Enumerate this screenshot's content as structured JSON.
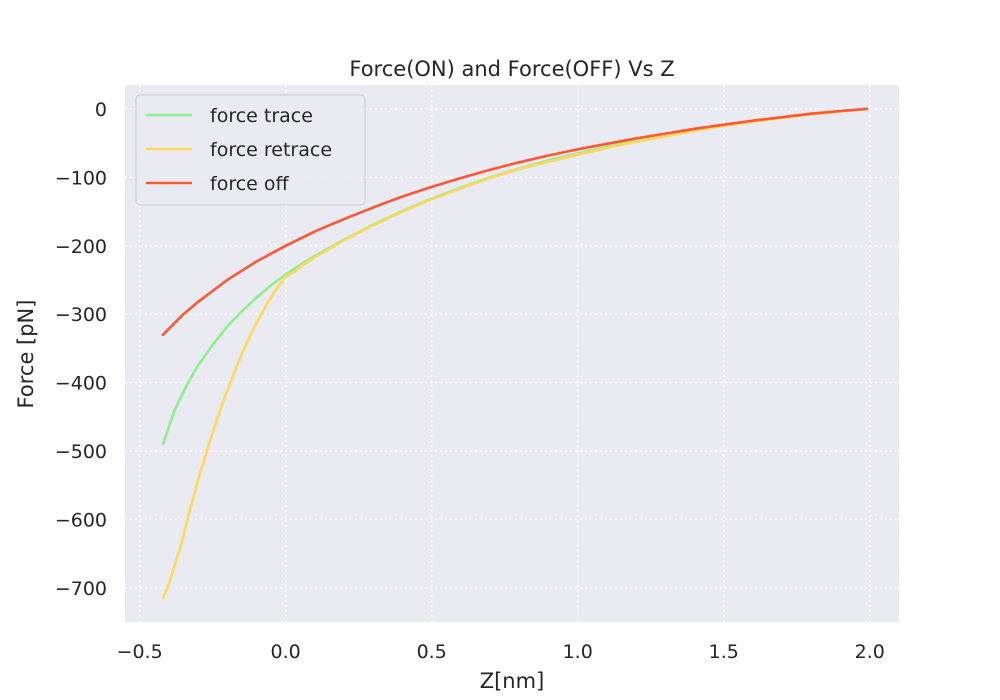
{
  "chart_data": {
    "type": "line",
    "title": "Force(ON) and Force(OFF) Vs Z",
    "xlabel": "Z[nm]",
    "ylabel": "Force [pN]",
    "xlim": [
      -0.55,
      2.1
    ],
    "ylim": [
      -750,
      35
    ],
    "xticks": [
      -0.5,
      0.0,
      0.5,
      1.0,
      1.5,
      2.0
    ],
    "xtick_labels": [
      "−0.5",
      "0.0",
      "0.5",
      "1.0",
      "1.5",
      "2.0"
    ],
    "yticks": [
      0,
      -100,
      -200,
      -300,
      -400,
      -500,
      -600,
      -700
    ],
    "ytick_labels": [
      "0",
      "−100",
      "−200",
      "−300",
      "−400",
      "−500",
      "−600",
      "−700"
    ],
    "grid": true,
    "grid_style": "dotted",
    "background": "#eaeaf2",
    "legend": "upper-left",
    "series": [
      {
        "name": "force trace",
        "color": "#90ee90",
        "x": [
          -0.42,
          -0.38,
          -0.34,
          -0.3,
          -0.25,
          -0.2,
          -0.15,
          -0.1,
          -0.05,
          0.0,
          0.05,
          0.1,
          0.2,
          0.3,
          0.4,
          0.5,
          0.6,
          0.7,
          0.8,
          0.9,
          1.0,
          1.1,
          1.2,
          1.3,
          1.4,
          1.5,
          1.6,
          1.7,
          1.8,
          1.9,
          1.99
        ],
        "y": [
          -490,
          -440,
          -405,
          -375,
          -345,
          -318,
          -296,
          -276,
          -258,
          -242,
          -228,
          -215,
          -191,
          -169,
          -149,
          -131,
          -115,
          -100,
          -87,
          -75,
          -65,
          -55,
          -46,
          -38,
          -30,
          -24,
          -18,
          -12,
          -7,
          -3,
          0
        ]
      },
      {
        "name": "force retrace",
        "color": "#ffd75a",
        "x": [
          -0.42,
          -0.4,
          -0.36,
          -0.33,
          -0.3,
          -0.27,
          -0.24,
          -0.21,
          -0.18,
          -0.15,
          -0.12,
          -0.09,
          -0.06,
          -0.03,
          0.0,
          0.03,
          0.06,
          0.1,
          0.2,
          0.3,
          0.4,
          0.5,
          0.6,
          0.7,
          0.8,
          0.9,
          1.0,
          1.1,
          1.2,
          1.3,
          1.4,
          1.5,
          1.6,
          1.7,
          1.8,
          1.9,
          1.99
        ],
        "y": [
          -715,
          -695,
          -640,
          -590,
          -543,
          -500,
          -460,
          -423,
          -390,
          -358,
          -330,
          -305,
          -282,
          -262,
          -245,
          -238,
          -228,
          -217,
          -192,
          -170,
          -150,
          -132,
          -116,
          -101,
          -88,
          -77,
          -67,
          -57,
          -48,
          -40,
          -32,
          -25,
          -19,
          -13,
          -8,
          -4,
          0
        ]
      },
      {
        "name": "force off",
        "color": "#ff5733",
        "x": [
          -0.42,
          -0.35,
          -0.3,
          -0.2,
          -0.1,
          0.0,
          0.1,
          0.2,
          0.3,
          0.4,
          0.5,
          0.6,
          0.7,
          0.8,
          0.9,
          1.0,
          1.1,
          1.2,
          1.3,
          1.4,
          1.5,
          1.6,
          1.7,
          1.8,
          1.9,
          1.99
        ],
        "y": [
          -330,
          -300,
          -282,
          -250,
          -223,
          -200,
          -179,
          -161,
          -144,
          -128,
          -114,
          -101,
          -89,
          -78,
          -68,
          -59,
          -51,
          -43,
          -36,
          -29,
          -23,
          -17,
          -12,
          -7,
          -3,
          0
        ]
      }
    ]
  }
}
